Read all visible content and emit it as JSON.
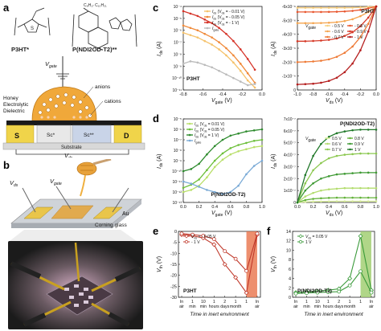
{
  "panel_letters": {
    "a": "a",
    "b": "b",
    "c": "c",
    "d": "d",
    "e": "e",
    "f": "f"
  },
  "panel_a": {
    "mol1": "P3HT*",
    "mol2": "P(NDI2OD-T2)**",
    "vgate": "V",
    "vgate_sub": "gate",
    "anions": "anions",
    "cations": "cations",
    "dielectric": [
      "Honey",
      "Electrolytic",
      "Dielectric"
    ],
    "s": "S",
    "d": "D",
    "sc1": "Sc*",
    "sc2": "Sc**",
    "substrate": "Substrate",
    "vds": "V",
    "vds_sub": "ds"
  },
  "panel_b": {
    "vds": "V",
    "vds_sub": "ds",
    "vgate": "V",
    "vgate_sub": "gate",
    "au": "Au",
    "glass": "Corning glass"
  },
  "panel_c": {
    "transfer": {
      "title": "P3HT",
      "ylabel": "I",
      "ylabel_sub": "ds",
      "ylabel_unit": "(A)",
      "xlabel": "V",
      "xlabel_sub": "gate",
      "xlabel_unit": "(V)",
      "x_ticks": [
        "-0.8",
        "-0.6",
        "-0.4",
        "-0.2",
        "0.0"
      ],
      "y_ticks": [
        "10⁻⁴",
        "10⁻⁵",
        "10⁻⁶",
        "10⁻⁷",
        "10⁻⁸",
        "10⁻⁹",
        "10⁻¹⁰",
        "10⁻¹¹"
      ],
      "legend": [
        {
          "label": "I",
          "sub": "ds",
          "cond": "(V",
          "csub": "ds",
          "val": " = - 0.01 V)",
          "color": "#f5c26b"
        },
        {
          "label": "I",
          "sub": "ds",
          "cond": "(V",
          "csub": "ds",
          "val": " = - 0.05 V)",
          "color": "#f08a3a"
        },
        {
          "label": "I",
          "sub": "ds",
          "cond": "(V",
          "csub": "ds",
          "val": " = - 1 V)",
          "color": "#d6352a"
        },
        {
          "label": "I",
          "sub": "gate",
          "cond": "",
          "csub": "",
          "val": "",
          "color": "#bbbbbb"
        }
      ]
    },
    "output": {
      "title": "P3HT",
      "ylabel": "I",
      "ylabel_sub": "ds",
      "ylabel_unit": "(A)",
      "xlabel": "V",
      "xlabel_sub": "ds",
      "xlabel_unit": "(V)",
      "x_ticks": [
        "-1.0",
        "-0.8",
        "-0.6",
        "-0.4",
        "-0.2",
        "0.0"
      ],
      "y_ticks": [
        "-6x10⁻⁶",
        "-5x10⁻⁶",
        "-4x10⁻⁶",
        "-3x10⁻⁶",
        "-2x10⁻⁶",
        "-1x10⁻⁶",
        "0"
      ],
      "vgate_label": "V",
      "vgate_sub": "gate",
      "legend": [
        {
          "label": "- 0.5 V",
          "color": "#f7cf80"
        },
        {
          "label": "- 0.8 V",
          "color": "#e8562e"
        },
        {
          "label": "- 0.6 V",
          "color": "#f4a44e"
        },
        {
          "label": "- 0.9 V",
          "color": "#d63a28"
        },
        {
          "label": "- 0.7 V",
          "color": "#ee7a36"
        },
        {
          "label": "- 1 V",
          "color": "#b51e1e"
        }
      ]
    }
  },
  "panel_d": {
    "transfer": {
      "title": "P(NDI2OD-T2)",
      "ylabel": "I",
      "ylabel_sub": "ds",
      "ylabel_unit": "(A)",
      "xlabel": "V",
      "xlabel_sub": "gate",
      "xlabel_unit": "(V)",
      "x_ticks": [
        "0.0",
        "0.2",
        "0.4",
        "0.6",
        "0.8",
        "1.0"
      ],
      "y_ticks": [
        "10⁻⁵",
        "10⁻⁶",
        "10⁻⁷",
        "10⁻⁸",
        "10⁻⁹",
        "10⁻¹⁰",
        "10⁻¹¹",
        "10⁻¹²",
        "10⁻¹³"
      ],
      "legend": [
        {
          "label": "I",
          "sub": "ds",
          "cond": "(V",
          "csub": "ds",
          "val": " = 0.01 V)",
          "color": "#b9df6a"
        },
        {
          "label": "I",
          "sub": "ds",
          "cond": "(V",
          "csub": "ds",
          "val": " = 0.05 V)",
          "color": "#6dbf3a"
        },
        {
          "label": "I",
          "sub": "ds",
          "cond": "(V",
          "csub": "ds",
          "val": " = 1 V)",
          "color": "#2e8b2e"
        },
        {
          "label": "I",
          "sub": "gate",
          "cond": "",
          "csub": "",
          "val": "",
          "color": "#7aaad6"
        }
      ]
    },
    "output": {
      "title": "P(NDI2OD-T2)",
      "ylabel": "I",
      "ylabel_sub": "ds",
      "ylabel_unit": "(A)",
      "xlabel": "V",
      "xlabel_sub": "ds",
      "xlabel_unit": "(V)",
      "x_ticks": [
        "0.0",
        "0.2",
        "0.4",
        "0.6",
        "0.8",
        "1.0"
      ],
      "y_ticks": [
        "0",
        "1x10⁻⁷",
        "2x10⁻⁷",
        "3x10⁻⁷",
        "4x10⁻⁷",
        "5x10⁻⁷",
        "6x10⁻⁷",
        "7x10⁻⁷"
      ],
      "vgate_label": "V",
      "vgate_sub": "gate",
      "legend": [
        {
          "label": "0.5 V",
          "color": "#d9ee9c"
        },
        {
          "label": "0.8 V",
          "color": "#63b23a"
        },
        {
          "label": "0.6 V",
          "color": "#b3dc6e"
        },
        {
          "label": "0.9 V",
          "color": "#3f9a34"
        },
        {
          "label": "0.7 V",
          "color": "#8cc850"
        },
        {
          "label": "1 V",
          "color": "#21782a"
        }
      ]
    }
  },
  "panel_e": {
    "title": "P3HT",
    "ylabel": "V",
    "ylabel_sub": "th",
    "ylabel_unit": "(V)",
    "xlabel": "Time in inert environment",
    "x_ticks_top": [
      "In",
      "1",
      "10",
      "1",
      "2",
      "1",
      "1",
      "In"
    ],
    "x_ticks_bottom": [
      "air",
      "min",
      "min",
      "hours",
      "days",
      "month",
      "",
      "air"
    ],
    "y_ticks": [
      "0",
      "-5",
      "-10",
      "-15",
      "-20",
      "-25",
      "-30"
    ],
    "legend": [
      {
        "label": "V",
        "sub": "ds",
        "val": " = - 0.05 V",
        "color": "#c0392b"
      },
      {
        "label": "",
        "sub": "",
        "val": "- 1 V",
        "color": "#c0392b"
      }
    ]
  },
  "panel_f": {
    "title": "P(NDI2OD-T2)",
    "ylabel": "V",
    "ylabel_sub": "th",
    "ylabel_unit": "(V)",
    "xlabel": "Time in inert environment",
    "x_ticks_top": [
      "In",
      "1",
      "10",
      "1",
      "2",
      "1",
      "1",
      "In"
    ],
    "x_ticks_bottom": [
      "air",
      "min",
      "min",
      "hours",
      "days",
      "month",
      "",
      "air"
    ],
    "y_ticks": [
      "0",
      "2",
      "4",
      "6",
      "8",
      "10",
      "12",
      "14"
    ],
    "legend": [
      {
        "label": "V",
        "sub": "ds",
        "val": " = 0.05 V",
        "color": "#3a9a3a"
      },
      {
        "label": "",
        "sub": "",
        "val": "1 V",
        "color": "#3a9a3a"
      }
    ]
  },
  "chart_data": [
    {
      "type": "line",
      "title": "P3HT",
      "panel": "c-transfer",
      "xlabel": "Vgate (V)",
      "ylabel": "Ids (A)",
      "xlim": [
        -1.0,
        0.1
      ],
      "ylim_log10": [
        -11,
        -4
      ],
      "log_y": true,
      "x": [
        -1.0,
        -0.9,
        -0.8,
        -0.7,
        -0.6,
        -0.5,
        -0.4,
        -0.3,
        -0.2,
        -0.1,
        0.0
      ],
      "series": [
        {
          "name": "Ids (Vds = - 0.01 V)",
          "log10_values": [
            -6.2,
            -6.4,
            -6.6,
            -6.9,
            -7.2,
            -7.6,
            -8.1,
            -8.7,
            -9.4,
            -10.2,
            -10.8
          ]
        },
        {
          "name": "Ids (Vds = - 0.05 V)",
          "log10_values": [
            -5.6,
            -5.8,
            -6.0,
            -6.3,
            -6.6,
            -7.0,
            -7.5,
            -8.1,
            -8.8,
            -9.6,
            -10.4
          ]
        },
        {
          "name": "Ids (Vds = - 1 V)",
          "log10_values": [
            -4.4,
            -4.6,
            -4.8,
            -5.1,
            -5.4,
            -5.8,
            -6.3,
            -6.9,
            -7.6,
            -8.4,
            -9.3
          ]
        },
        {
          "name": "Igate",
          "log10_values": [
            -8.8,
            -8.6,
            -8.7,
            -8.9,
            -9.1,
            -9.4,
            -9.7,
            -10.0,
            -10.3,
            -10.6,
            -10.5
          ]
        }
      ]
    },
    {
      "type": "line",
      "title": "P3HT",
      "panel": "c-output",
      "xlabel": "Vds (V)",
      "ylabel": "Ids (A)",
      "xlim": [
        -1.0,
        0.0
      ],
      "ylim": [
        -6e-06,
        0
      ],
      "x": [
        -1.0,
        -0.9,
        -0.8,
        -0.7,
        -0.6,
        -0.5,
        -0.4,
        -0.3,
        -0.2,
        -0.1,
        0.0
      ],
      "series": [
        {
          "name": "- 0.5 V",
          "values": [
            -1e-07,
            -1e-07,
            -1e-07,
            -1e-07,
            -1e-07,
            -1e-07,
            -1e-07,
            -9e-08,
            -7e-08,
            -4e-08,
            0
          ]
        },
        {
          "name": "- 0.6 V",
          "values": [
            -4e-07,
            -4e-07,
            -4e-07,
            -4e-07,
            -3.9e-07,
            -3.8e-07,
            -3.6e-07,
            -3.2e-07,
            -2.5e-07,
            -1.4e-07,
            0
          ]
        },
        {
          "name": "- 0.7 V",
          "values": [
            -1.2e-06,
            -1.2e-06,
            -1.2e-06,
            -1.19e-06,
            -1.17e-06,
            -1.13e-06,
            -1.05e-06,
            -9.2e-07,
            -7e-07,
            -4e-07,
            0
          ]
        },
        {
          "name": "- 0.8 V",
          "values": [
            -2.5e-06,
            -2.5e-06,
            -2.48e-06,
            -2.45e-06,
            -2.4e-06,
            -2.3e-06,
            -2.12e-06,
            -1.85e-06,
            -1.42e-06,
            -8e-07,
            0
          ]
        },
        {
          "name": "- 0.9 V",
          "values": [
            -4e-06,
            -3.98e-06,
            -3.95e-06,
            -3.9e-06,
            -3.8e-06,
            -3.62e-06,
            -3.33e-06,
            -2.88e-06,
            -2.2e-06,
            -1.25e-06,
            0
          ]
        },
        {
          "name": "- 1 V",
          "values": [
            -5.6e-06,
            -5.58e-06,
            -5.55e-06,
            -5.48e-06,
            -5.35e-06,
            -5.12e-06,
            -4.72e-06,
            -4.1e-06,
            -3.15e-06,
            -1.8e-06,
            0
          ]
        }
      ]
    },
    {
      "type": "line",
      "title": "P(NDI2OD-T2)",
      "panel": "d-transfer",
      "xlabel": "Vgate (V)",
      "ylabel": "Ids (A)",
      "xlim": [
        0.0,
        1.0
      ],
      "ylim_log10": [
        -13,
        -5
      ],
      "log_y": true,
      "x": [
        0.0,
        0.1,
        0.2,
        0.3,
        0.4,
        0.5,
        0.6,
        0.7,
        0.8,
        0.9,
        1.0
      ],
      "series": [
        {
          "name": "Ids (Vds = 0.01 V)",
          "log10_values": [
            -12.0,
            -11.8,
            -11.4,
            -10.6,
            -9.6,
            -8.9,
            -8.4,
            -8.1,
            -7.9,
            -7.7,
            -7.6
          ]
        },
        {
          "name": "Ids (Vds = 0.05 V)",
          "log10_values": [
            -11.6,
            -11.3,
            -10.8,
            -9.9,
            -9.0,
            -8.3,
            -7.8,
            -7.5,
            -7.3,
            -7.1,
            -7.0
          ]
        },
        {
          "name": "Ids (Vds = 1 V)",
          "log10_values": [
            -10.0,
            -9.8,
            -9.3,
            -8.4,
            -7.6,
            -7.0,
            -6.6,
            -6.4,
            -6.2,
            -6.1,
            -6.0
          ]
        },
        {
          "name": "Igate",
          "log10_values": [
            -11.0,
            -11.2,
            -11.5,
            -11.8,
            -12.0,
            -12.2,
            -12.0,
            -11.4,
            -10.3,
            -9.5,
            -9.0
          ]
        }
      ]
    },
    {
      "type": "line",
      "title": "P(NDI2OD-T2)",
      "panel": "d-output",
      "xlabel": "Vds (V)",
      "ylabel": "Ids (A)",
      "xlim": [
        0.0,
        1.0
      ],
      "ylim": [
        0,
        7e-07
      ],
      "x": [
        0.0,
        0.1,
        0.2,
        0.3,
        0.4,
        0.5,
        0.6,
        0.7,
        0.8,
        0.9,
        1.0
      ],
      "series": [
        {
          "name": "0.5 V",
          "values": [
            0,
            5e-09,
            7e-09,
            8e-09,
            9e-09,
            1e-08,
            1e-08,
            1e-08,
            1e-08,
            1e-08,
            1e-08
          ]
        },
        {
          "name": "0.6 V",
          "values": [
            0,
            2e-08,
            3e-08,
            3.5e-08,
            3.8e-08,
            4e-08,
            4e-08,
            4e-08,
            4e-08,
            4e-08,
            4e-08
          ]
        },
        {
          "name": "0.7 V",
          "values": [
            0,
            5e-08,
            8e-08,
            1e-07,
            1.1e-07,
            1.15e-07,
            1.2e-07,
            1.2e-07,
            1.2e-07,
            1.2e-07,
            1.2e-07
          ]
        },
        {
          "name": "0.8 V",
          "values": [
            0,
            1e-07,
            1.6e-07,
            2e-07,
            2.2e-07,
            2.35e-07,
            2.4e-07,
            2.45e-07,
            2.5e-07,
            2.5e-07,
            2.5e-07
          ]
        },
        {
          "name": "0.9 V",
          "values": [
            0,
            1.6e-07,
            2.7e-07,
            3.3e-07,
            3.7e-07,
            3.9e-07,
            4e-07,
            4.05e-07,
            4.1e-07,
            4.1e-07,
            4.1e-07
          ]
        },
        {
          "name": "1 V",
          "values": [
            0,
            2.3e-07,
            3.9e-07,
            4.9e-07,
            5.5e-07,
            5.8e-07,
            5.95e-07,
            6.05e-07,
            6.1e-07,
            6.1e-07,
            6.1e-07
          ]
        }
      ]
    },
    {
      "type": "line",
      "title": "P3HT",
      "panel": "e",
      "xlabel": "Time in inert environment",
      "ylabel": "Vth (V)",
      "categories": [
        "In air",
        "1 min",
        "10 min",
        "1 hours",
        "2 days",
        "1 month",
        "1",
        "In air"
      ],
      "ylim": [
        -30,
        0
      ],
      "series": [
        {
          "name": "Vds = - 0.05 V",
          "values": [
            -1.5,
            -2.0,
            -3.0,
            -6.0,
            -15.0,
            -21.0,
            -28.0,
            -1.5
          ]
        },
        {
          "name": "- 1 V",
          "values": [
            -1.0,
            -1.5,
            -2.0,
            -3.5,
            -9.0,
            -12.5,
            -18.0,
            -1.0
          ]
        }
      ],
      "shaded_region": [
        "1",
        "In air"
      ]
    },
    {
      "type": "line",
      "title": "P(NDI2OD-T2)",
      "panel": "f",
      "xlabel": "Time in inert environment",
      "ylabel": "Vth (V)",
      "categories": [
        "In air",
        "1 min",
        "10 min",
        "1 hours",
        "2 days",
        "1 month",
        "1",
        "In air"
      ],
      "ylim": [
        0,
        14
      ],
      "series": [
        {
          "name": "Vds = 0.05 V",
          "values": [
            1.0,
            1.2,
            1.3,
            1.5,
            1.8,
            4.0,
            13.0,
            1.5
          ]
        },
        {
          "name": "1 V",
          "values": [
            0.8,
            0.9,
            1.0,
            1.1,
            1.2,
            2.5,
            5.5,
            1.0
          ]
        }
      ],
      "shaded_region": [
        "1",
        "In air"
      ]
    }
  ]
}
